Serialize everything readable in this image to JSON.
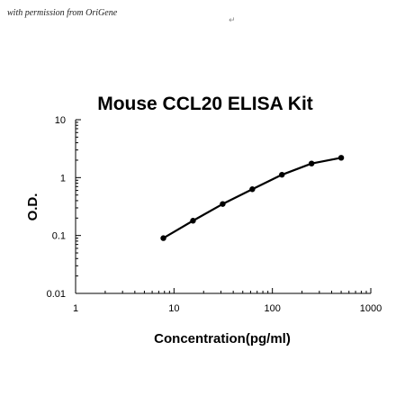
{
  "credit_text": "with permission from OriGene",
  "return_mark": "↵",
  "chart_data": {
    "type": "line",
    "title": "Mouse CCL20 ELISA Kit",
    "xlabel": "Concentration(pg/ml)",
    "ylabel": "O.D.",
    "x_scale": "log",
    "y_scale": "log",
    "xlim": [
      1,
      1000
    ],
    "ylim": [
      0.01,
      10
    ],
    "x_ticks": [
      {
        "value": 1,
        "label": "1"
      },
      {
        "value": 10,
        "label": "10"
      },
      {
        "value": 100,
        "label": "100"
      },
      {
        "value": 1000,
        "label": "1000"
      }
    ],
    "y_ticks": [
      {
        "value": 0.01,
        "label": "0.01"
      },
      {
        "value": 0.1,
        "label": "0.1"
      },
      {
        "value": 1,
        "label": "1"
      },
      {
        "value": 10,
        "label": "10"
      }
    ],
    "grid": false,
    "legend": false,
    "series": [
      {
        "color": "#000000",
        "x": [
          7.8,
          15.6,
          31.25,
          62.5,
          125,
          250,
          500
        ],
        "y": [
          0.09,
          0.18,
          0.35,
          0.63,
          1.12,
          1.75,
          2.2
        ]
      }
    ]
  }
}
